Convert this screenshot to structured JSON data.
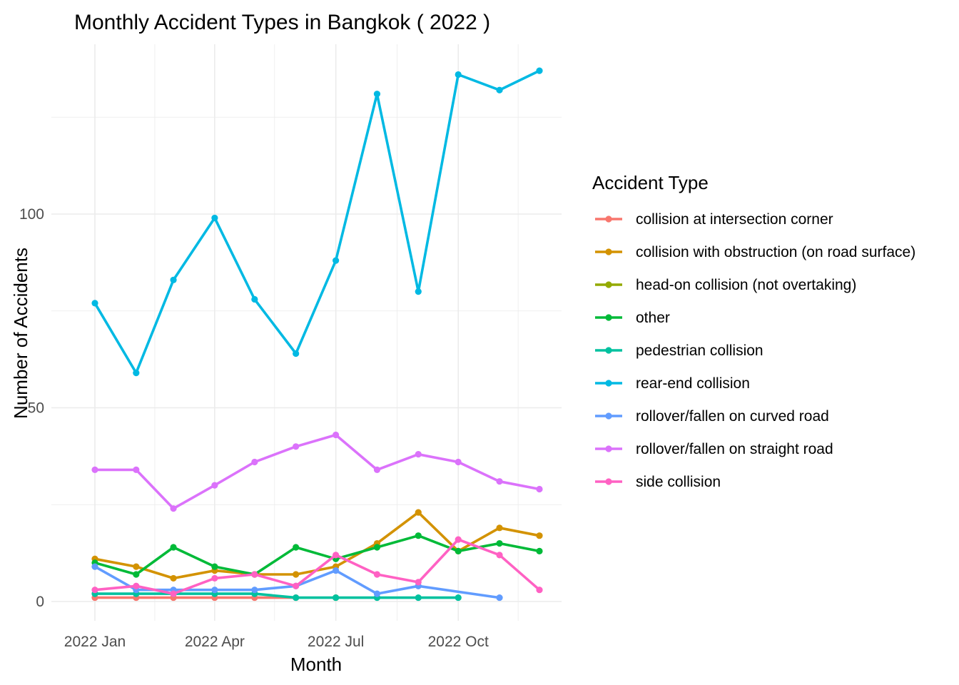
{
  "chart_data": {
    "type": "line",
    "title": "Monthly Accident Types in Bangkok ( 2022 )",
    "xlabel": "Month",
    "ylabel": "Number of Accidents",
    "legend_title": "Accident Type",
    "legend_position": "right",
    "grid": true,
    "x_range": [
      "2022-01-01",
      "2022-12-01"
    ],
    "ylim": [
      -5,
      145
    ],
    "x_ticks": [
      {
        "date": "2022-01-01",
        "label": "2022 Jan"
      },
      {
        "date": "2022-04-01",
        "label": "2022 Apr"
      },
      {
        "date": "2022-07-01",
        "label": "2022 Jul"
      },
      {
        "date": "2022-10-01",
        "label": "2022 Oct"
      }
    ],
    "y_ticks": [
      0,
      50,
      100
    ],
    "series": [
      {
        "name": "collision at intersection corner",
        "color": "#F8766D",
        "points": [
          [
            "2022-01-01",
            1
          ],
          [
            "2022-02-01",
            1
          ],
          [
            "2022-03-01",
            1
          ],
          [
            "2022-04-01",
            1
          ],
          [
            "2022-05-01",
            1
          ],
          [
            "2022-06-01",
            1
          ]
        ]
      },
      {
        "name": "collision with obstruction (on road surface)",
        "color": "#D39200",
        "points": [
          [
            "2022-01-01",
            11
          ],
          [
            "2022-02-01",
            9
          ],
          [
            "2022-03-01",
            6
          ],
          [
            "2022-04-01",
            8
          ],
          [
            "2022-05-01",
            7
          ],
          [
            "2022-06-01",
            7
          ],
          [
            "2022-07-01",
            9
          ],
          [
            "2022-08-01",
            15
          ],
          [
            "2022-09-01",
            23
          ],
          [
            "2022-10-01",
            13
          ],
          [
            "2022-11-01",
            19
          ],
          [
            "2022-12-01",
            17
          ]
        ]
      },
      {
        "name": "head-on collision (not overtaking)",
        "color": "#93AA00",
        "points": [
          [
            "2022-07-01",
            1
          ]
        ]
      },
      {
        "name": "other",
        "color": "#00BA38",
        "points": [
          [
            "2022-01-01",
            10
          ],
          [
            "2022-02-01",
            7
          ],
          [
            "2022-03-01",
            14
          ],
          [
            "2022-04-01",
            9
          ],
          [
            "2022-05-01",
            7
          ],
          [
            "2022-06-01",
            14
          ],
          [
            "2022-07-01",
            11
          ],
          [
            "2022-08-01",
            14
          ],
          [
            "2022-09-01",
            17
          ],
          [
            "2022-10-01",
            13
          ],
          [
            "2022-11-01",
            15
          ],
          [
            "2022-12-01",
            13
          ]
        ]
      },
      {
        "name": "pedestrian collision",
        "color": "#00C19F",
        "points": [
          [
            "2022-01-01",
            2
          ],
          [
            "2022-02-01",
            2
          ],
          [
            "2022-03-01",
            2
          ],
          [
            "2022-04-01",
            2
          ],
          [
            "2022-05-01",
            2
          ],
          [
            "2022-06-01",
            1
          ],
          [
            "2022-07-01",
            1
          ],
          [
            "2022-08-01",
            1
          ],
          [
            "2022-09-01",
            1
          ],
          [
            "2022-10-01",
            1
          ]
        ]
      },
      {
        "name": "rear-end collision",
        "color": "#00B9E3",
        "points": [
          [
            "2022-01-01",
            77
          ],
          [
            "2022-02-01",
            59
          ],
          [
            "2022-03-01",
            83
          ],
          [
            "2022-04-01",
            99
          ],
          [
            "2022-05-01",
            78
          ],
          [
            "2022-06-01",
            64
          ],
          [
            "2022-07-01",
            88
          ],
          [
            "2022-08-01",
            131
          ],
          [
            "2022-09-01",
            80
          ],
          [
            "2022-10-01",
            136
          ],
          [
            "2022-11-01",
            132
          ],
          [
            "2022-12-01",
            137
          ]
        ]
      },
      {
        "name": "rollover/fallen on curved road",
        "color": "#619CFF",
        "points": [
          [
            "2022-01-01",
            9
          ],
          [
            "2022-02-01",
            3
          ],
          [
            "2022-03-01",
            3
          ],
          [
            "2022-04-01",
            3
          ],
          [
            "2022-05-01",
            3
          ],
          [
            "2022-06-01",
            4
          ],
          [
            "2022-07-01",
            8
          ],
          [
            "2022-08-01",
            2
          ],
          [
            "2022-09-01",
            4
          ],
          [
            "2022-11-01",
            1
          ]
        ]
      },
      {
        "name": "rollover/fallen on straight road",
        "color": "#DB72FB",
        "points": [
          [
            "2022-01-01",
            34
          ],
          [
            "2022-02-01",
            34
          ],
          [
            "2022-03-01",
            24
          ],
          [
            "2022-04-01",
            30
          ],
          [
            "2022-05-01",
            36
          ],
          [
            "2022-06-01",
            40
          ],
          [
            "2022-07-01",
            43
          ],
          [
            "2022-08-01",
            34
          ],
          [
            "2022-09-01",
            38
          ],
          [
            "2022-10-01",
            36
          ],
          [
            "2022-11-01",
            31
          ],
          [
            "2022-12-01",
            29
          ]
        ]
      },
      {
        "name": "side collision",
        "color": "#FF61C3",
        "points": [
          [
            "2022-01-01",
            3
          ],
          [
            "2022-02-01",
            4
          ],
          [
            "2022-03-01",
            2
          ],
          [
            "2022-04-01",
            6
          ],
          [
            "2022-05-01",
            7
          ],
          [
            "2022-06-01",
            4
          ],
          [
            "2022-07-01",
            12
          ],
          [
            "2022-08-01",
            7
          ],
          [
            "2022-09-01",
            5
          ],
          [
            "2022-10-01",
            16
          ],
          [
            "2022-11-01",
            12
          ],
          [
            "2022-12-01",
            3
          ]
        ]
      }
    ]
  }
}
